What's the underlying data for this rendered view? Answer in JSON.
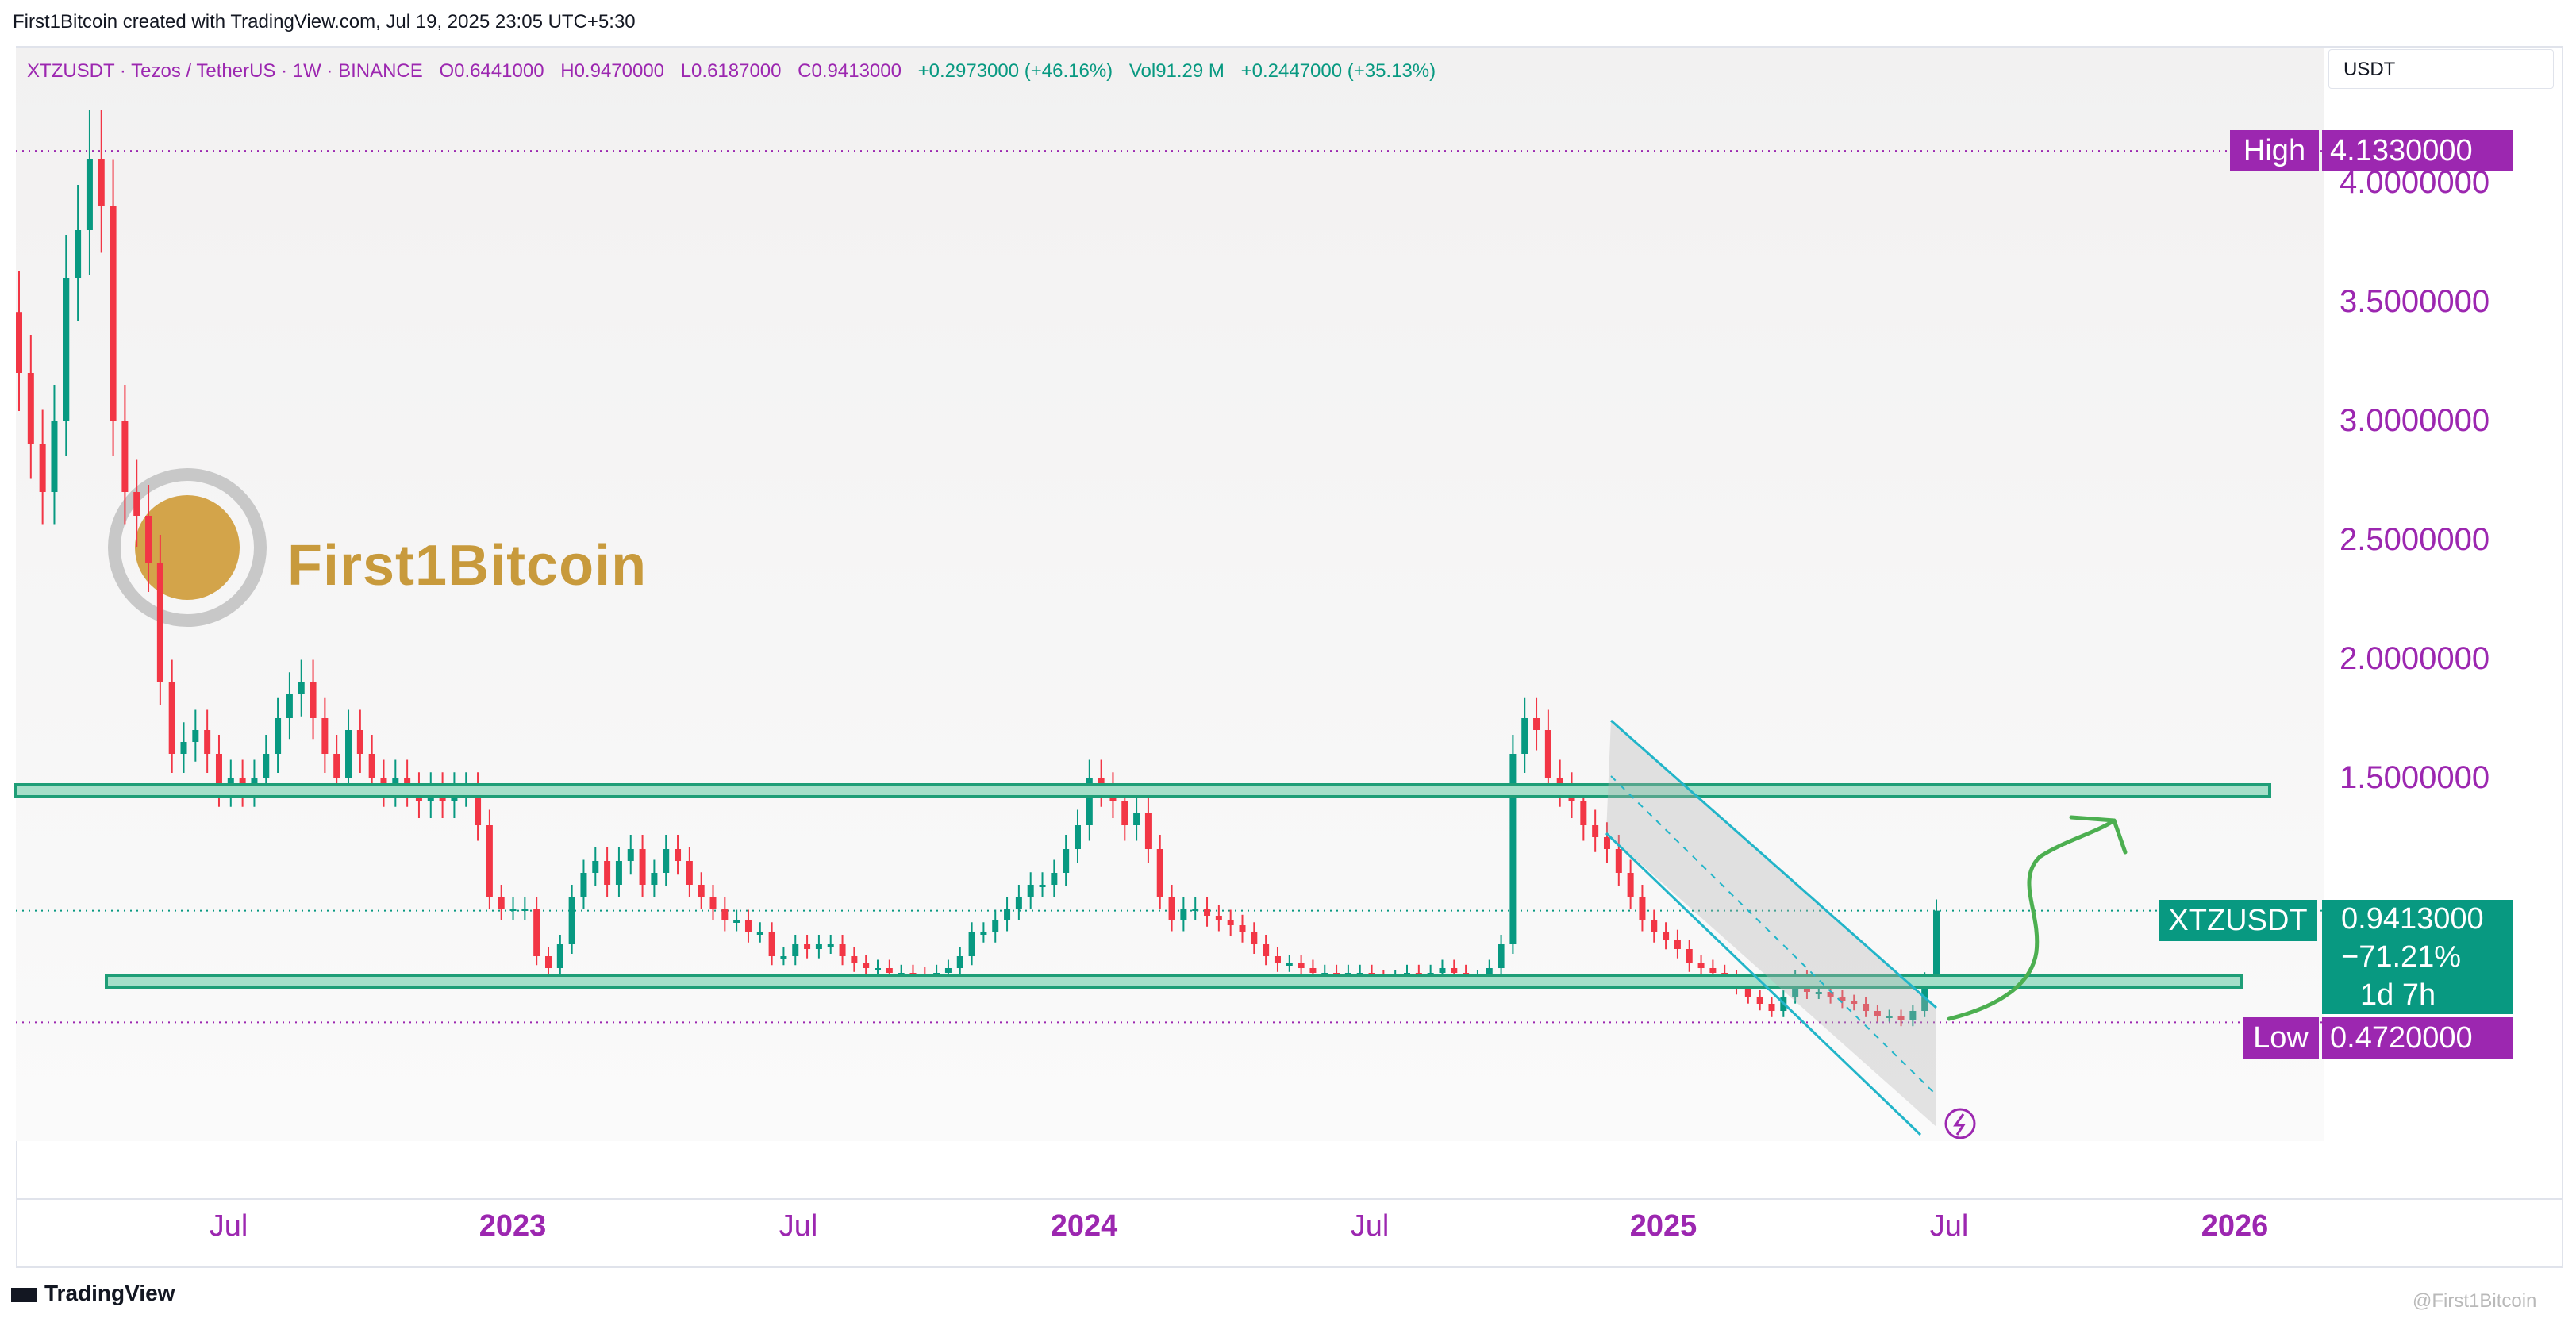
{
  "header": {
    "created_by": "First1Bitcoin created with TradingView.com, Jul 19, 2025 23:05 UTC+5:30"
  },
  "legend": {
    "symbol": "XTZUSDT · Tezos / TetherUS · 1W · BINANCE",
    "open": "O0.6441000",
    "high": "H0.9470000",
    "low": "L0.6187000",
    "close": "C0.9413000",
    "change": "+0.2973000 (+46.16%)",
    "volume": "Vol91.29 M",
    "volume_change": "+0.2447000 (+35.13%)"
  },
  "currency_button": "USDT",
  "price_axis": {
    "ticks": [
      "4.0000000",
      "3.5000000",
      "3.0000000",
      "2.5000000",
      "2.0000000",
      "1.5000000"
    ]
  },
  "time_axis": {
    "ticks": [
      {
        "label": "Jul",
        "year": false
      },
      {
        "label": "2023",
        "year": true
      },
      {
        "label": "Jul",
        "year": false
      },
      {
        "label": "2024",
        "year": true
      },
      {
        "label": "Jul",
        "year": false
      },
      {
        "label": "2025",
        "year": true
      },
      {
        "label": "Jul",
        "year": false
      },
      {
        "label": "2026",
        "year": true
      }
    ]
  },
  "tags": {
    "high_label": "High",
    "high_value": "4.1330000",
    "low_label": "Low",
    "low_value": "0.4720000",
    "symbol_label": "XTZUSDT",
    "last_price": "0.9413000",
    "pct_change": "−71.21%",
    "countdown": "1d 7h"
  },
  "watermark_logo": "First1Bitcoin",
  "footer": {
    "brand": "TradingView",
    "corner_watermark": "@First1Bitcoin"
  },
  "colors": {
    "up": "#089981",
    "down": "#f23645",
    "purple": "#9c27b0",
    "zone_fill": "#a5dfc9",
    "zone_border": "#1e9e77",
    "channel": "#22b5c9",
    "arrow": "#4caf50"
  },
  "chart_data": {
    "type": "candlestick",
    "timeframe": "1W",
    "price_range": [
      0.2,
      4.6
    ],
    "all_time_high": 4.133,
    "all_time_low": 0.472,
    "last_close": 0.9413,
    "zones": [
      {
        "name": "resistance",
        "top": 1.47,
        "bottom": 1.42
      },
      {
        "name": "support",
        "top": 0.67,
        "bottom": 0.62
      }
    ],
    "closes": [
      3.2,
      2.9,
      2.7,
      3.0,
      3.6,
      3.8,
      4.1,
      3.9,
      3.0,
      2.7,
      2.6,
      2.4,
      1.9,
      1.6,
      1.65,
      1.7,
      1.6,
      1.45,
      1.5,
      1.45,
      1.5,
      1.6,
      1.75,
      1.85,
      1.9,
      1.75,
      1.6,
      1.5,
      1.7,
      1.6,
      1.5,
      1.45,
      1.5,
      1.45,
      1.4,
      1.45,
      1.4,
      1.45,
      1.45,
      1.3,
      1.0,
      0.95,
      0.95,
      0.95,
      0.75,
      0.7,
      0.8,
      1.0,
      1.1,
      1.15,
      1.05,
      1.15,
      1.2,
      1.05,
      1.1,
      1.2,
      1.15,
      1.05,
      1.0,
      0.95,
      0.9,
      0.9,
      0.85,
      0.85,
      0.75,
      0.75,
      0.8,
      0.78,
      0.8,
      0.8,
      0.75,
      0.72,
      0.7,
      0.7,
      0.68,
      0.68,
      0.67,
      0.66,
      0.68,
      0.7,
      0.75,
      0.85,
      0.85,
      0.9,
      0.95,
      1.0,
      1.05,
      1.05,
      1.1,
      1.2,
      1.3,
      1.5,
      1.45,
      1.4,
      1.3,
      1.35,
      1.2,
      1.0,
      0.9,
      0.95,
      0.95,
      0.92,
      0.9,
      0.88,
      0.85,
      0.8,
      0.75,
      0.72,
      0.72,
      0.7,
      0.68,
      0.68,
      0.66,
      0.68,
      0.68,
      0.66,
      0.65,
      0.66,
      0.68,
      0.66,
      0.68,
      0.7,
      0.68,
      0.66,
      0.66,
      0.7,
      0.8,
      1.6,
      1.75,
      1.7,
      1.5,
      1.45,
      1.4,
      1.3,
      1.25,
      1.2,
      1.1,
      1.0,
      0.9,
      0.85,
      0.82,
      0.78,
      0.72,
      0.7,
      0.68,
      0.66,
      0.62,
      0.58,
      0.55,
      0.52,
      0.58,
      0.66,
      0.6,
      0.6,
      0.58,
      0.56,
      0.55,
      0.52,
      0.5,
      0.5,
      0.48,
      0.52,
      0.65,
      0.9413
    ]
  }
}
